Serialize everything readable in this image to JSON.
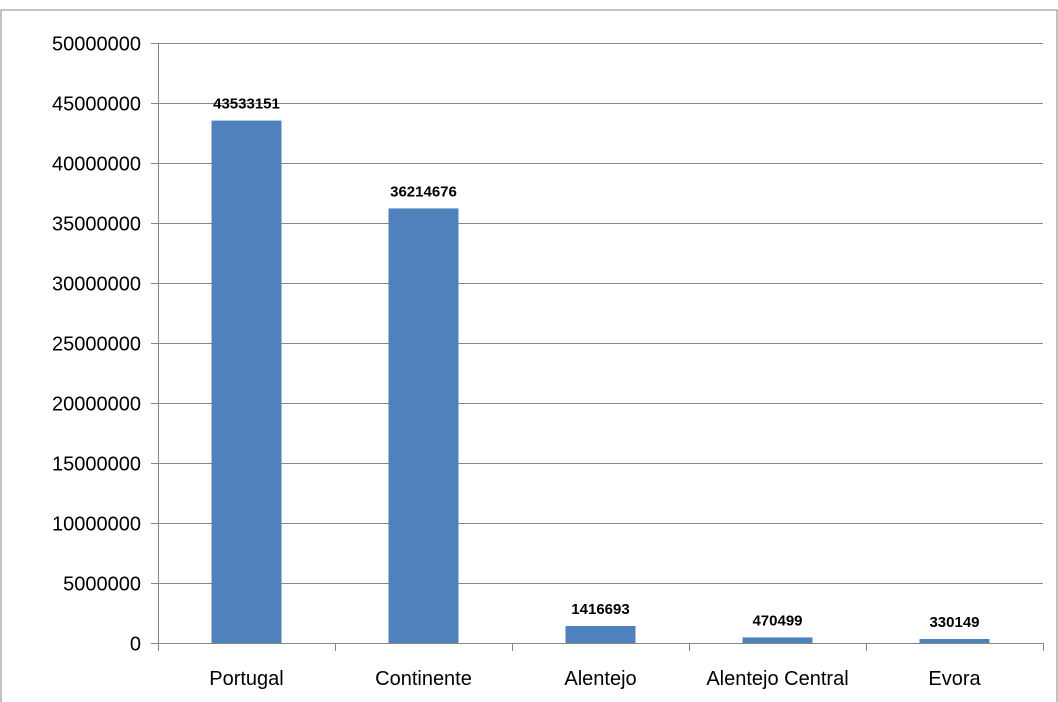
{
  "chart_data": {
    "type": "bar",
    "title": "",
    "xlabel": "",
    "ylabel": "",
    "categories": [
      "Portugal",
      "Continente",
      "Alentejo",
      "Alentejo Central",
      "Evora"
    ],
    "values": [
      43533151,
      36214676,
      1416693,
      470499,
      330149
    ],
    "data_labels": [
      "43533151",
      "36214676",
      "1416693",
      "470499",
      "330149"
    ],
    "ylim": [
      0,
      50000000
    ],
    "y_ticks": [
      0,
      5000000,
      10000000,
      15000000,
      20000000,
      25000000,
      30000000,
      35000000,
      40000000,
      45000000,
      50000000
    ],
    "y_tick_labels": [
      "0",
      "5000000",
      "10000000",
      "15000000",
      "20000000",
      "25000000",
      "30000000",
      "35000000",
      "40000000",
      "45000000",
      "50000000"
    ],
    "grid": true,
    "legend": "none",
    "colors": {
      "bar": "#4f81bd",
      "grid": "#868686",
      "axis": "#868686",
      "border": "#868686",
      "text": "#000000"
    }
  }
}
